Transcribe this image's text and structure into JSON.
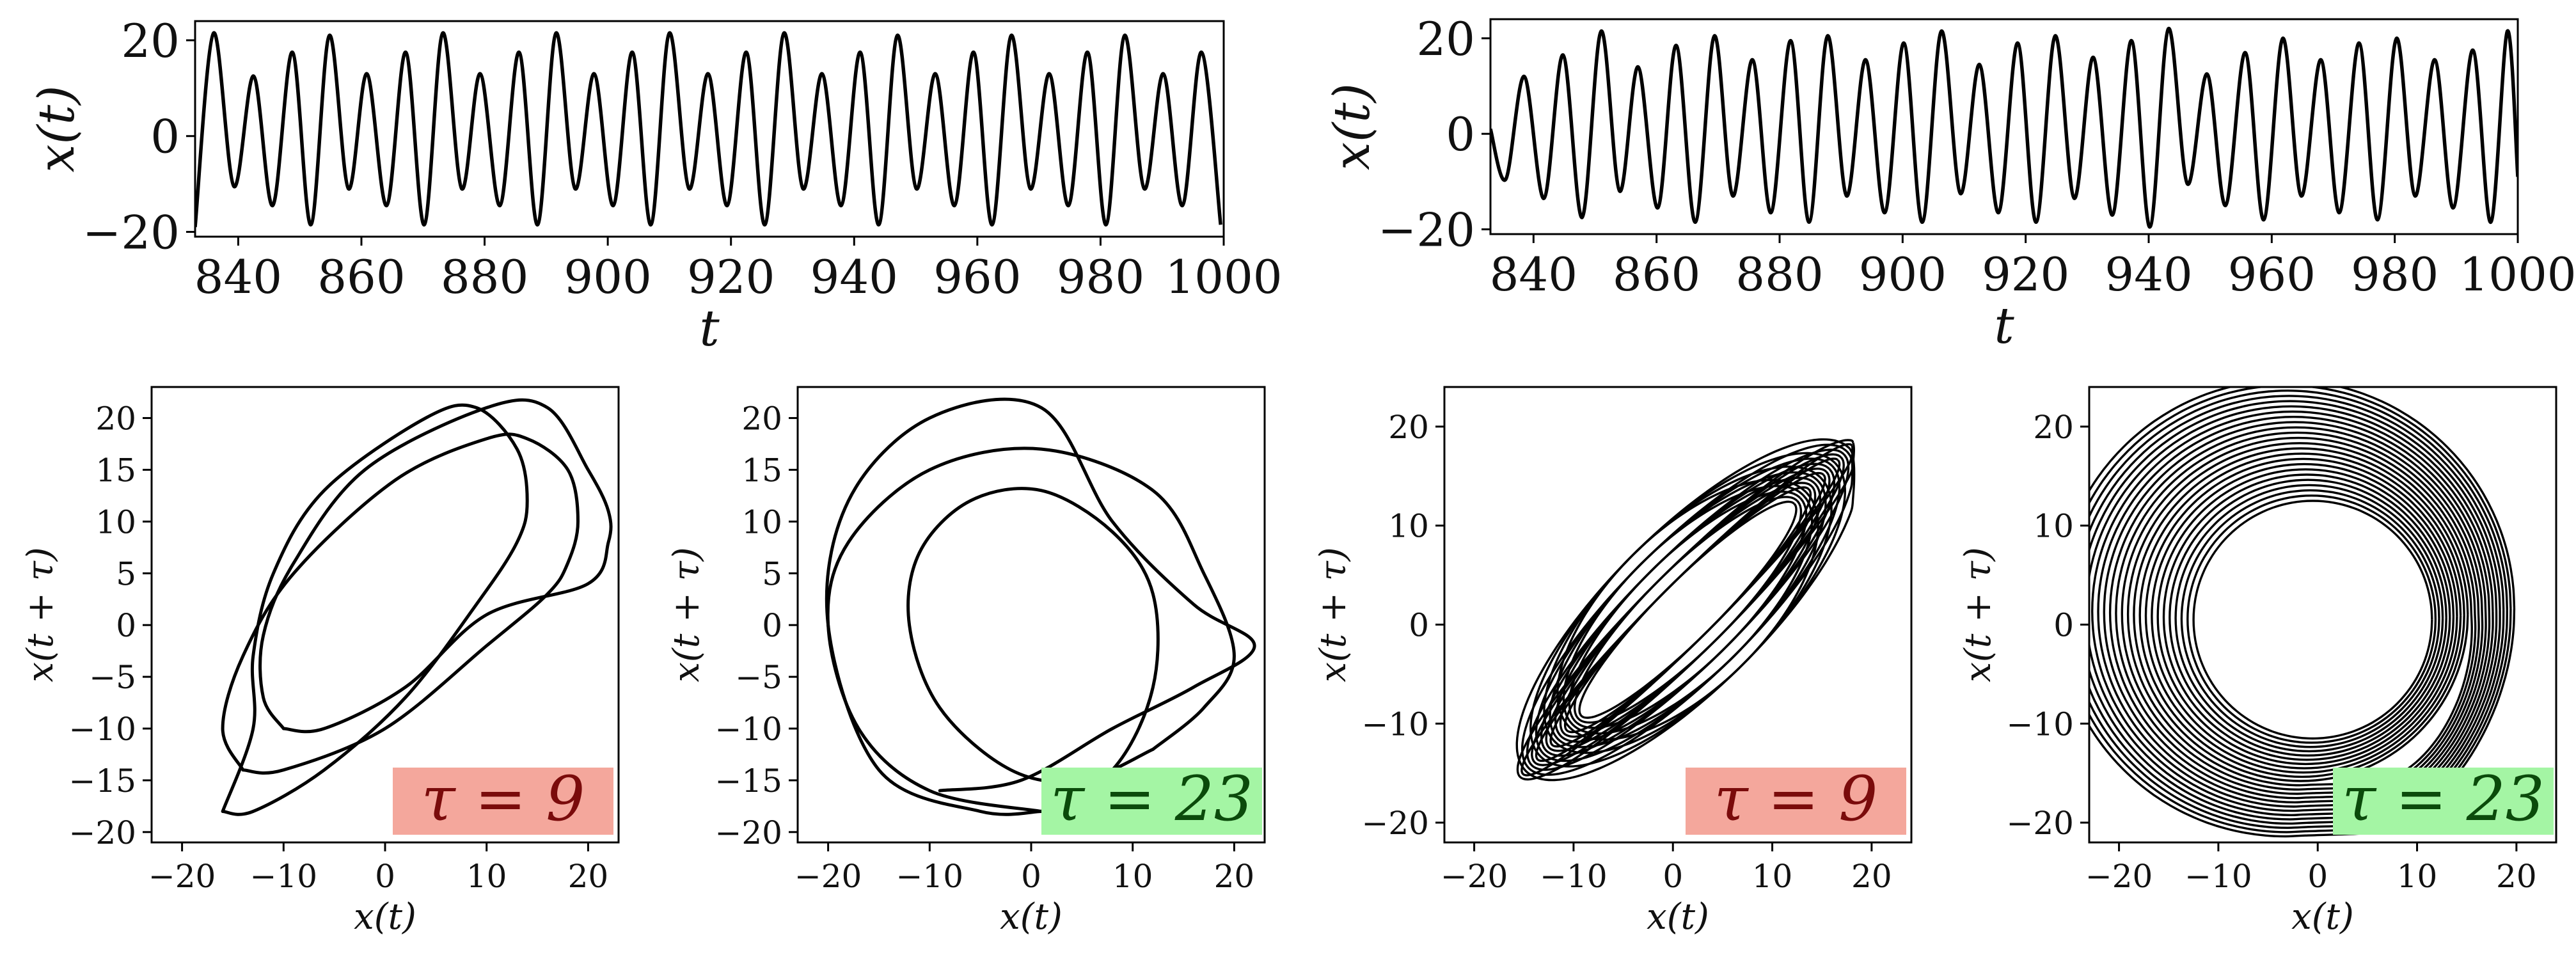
{
  "colors": {
    "trace": "#000000",
    "badge_red_bg": "#f4a79c",
    "badge_red_text": "#7a0b0b",
    "badge_green_bg": "#a4f5a4",
    "badge_green_text": "#0b4a0b"
  },
  "chart_data": [
    {
      "id": "ts-left",
      "type": "line",
      "xlabel": "t",
      "ylabel": "x(t)",
      "xlim": [
        833,
        1000
      ],
      "ylim": [
        -21,
        24
      ],
      "xticks": [
        840,
        860,
        880,
        900,
        920,
        940,
        960,
        980,
        1000
      ],
      "xtick_labels": [
        "840",
        "860",
        "880",
        "900",
        "920",
        "940",
        "960",
        "980",
        "1000"
      ],
      "yticks": [
        20,
        0,
        -20
      ],
      "ytick_labels": [
        "20",
        "0",
        "−20"
      ],
      "grid": false,
      "series": [
        {
          "color": "#000000",
          "peaks": [
            {
              "t": 836.0,
              "v": 21.5
            },
            {
              "t": 842.5,
              "v": 12.5
            },
            {
              "t": 848.8,
              "v": 17.5
            },
            {
              "t": 854.8,
              "v": 21.0
            },
            {
              "t": 860.9,
              "v": 13.0
            },
            {
              "t": 867.2,
              "v": 17.5
            },
            {
              "t": 873.2,
              "v": 21.5
            },
            {
              "t": 879.3,
              "v": 13.0
            },
            {
              "t": 885.6,
              "v": 17.5
            },
            {
              "t": 891.6,
              "v": 21.5
            },
            {
              "t": 897.8,
              "v": 13.0
            },
            {
              "t": 904.0,
              "v": 17.5
            },
            {
              "t": 910.0,
              "v": 21.5
            },
            {
              "t": 916.3,
              "v": 13.0
            },
            {
              "t": 922.5,
              "v": 17.5
            },
            {
              "t": 928.6,
              "v": 21.5
            },
            {
              "t": 934.8,
              "v": 13.0
            },
            {
              "t": 941.0,
              "v": 17.5
            },
            {
              "t": 947.0,
              "v": 21.0
            },
            {
              "t": 953.2,
              "v": 13.0
            },
            {
              "t": 959.4,
              "v": 17.5
            },
            {
              "t": 965.5,
              "v": 21.0
            },
            {
              "t": 971.7,
              "v": 13.0
            },
            {
              "t": 977.9,
              "v": 17.5
            },
            {
              "t": 983.9,
              "v": 21.0
            },
            {
              "t": 990.2,
              "v": 13.0
            },
            {
              "t": 996.4,
              "v": 17.5
            }
          ],
          "troughs": [
            {
              "t": 833.0,
              "v": -19.0
            },
            {
              "t": 839.3,
              "v": -10.5
            },
            {
              "t": 845.6,
              "v": -14.5
            },
            {
              "t": 851.8,
              "v": -18.5
            },
            {
              "t": 857.9,
              "v": -11.0
            },
            {
              "t": 864.1,
              "v": -14.5
            },
            {
              "t": 870.2,
              "v": -18.5
            },
            {
              "t": 876.3,
              "v": -11.0
            },
            {
              "t": 882.5,
              "v": -14.5
            },
            {
              "t": 888.6,
              "v": -18.5
            },
            {
              "t": 894.7,
              "v": -11.0
            },
            {
              "t": 900.9,
              "v": -14.5
            },
            {
              "t": 907.0,
              "v": -18.5
            },
            {
              "t": 913.2,
              "v": -11.0
            },
            {
              "t": 919.4,
              "v": -14.5
            },
            {
              "t": 925.5,
              "v": -18.5
            },
            {
              "t": 931.7,
              "v": -11.0
            },
            {
              "t": 937.9,
              "v": -14.5
            },
            {
              "t": 944.0,
              "v": -18.5
            },
            {
              "t": 950.1,
              "v": -11.0
            },
            {
              "t": 956.3,
              "v": -14.5
            },
            {
              "t": 962.4,
              "v": -18.5
            },
            {
              "t": 968.6,
              "v": -11.0
            },
            {
              "t": 974.8,
              "v": -14.5
            },
            {
              "t": 980.9,
              "v": -18.5
            },
            {
              "t": 987.1,
              "v": -11.0
            },
            {
              "t": 993.3,
              "v": -14.5
            },
            {
              "t": 999.5,
              "v": -18.5
            }
          ]
        }
      ]
    },
    {
      "id": "ts-right",
      "type": "line",
      "xlabel": "t",
      "ylabel": "x(t)",
      "xlim": [
        833,
        1000
      ],
      "ylim": [
        -21,
        24
      ],
      "xticks": [
        840,
        860,
        880,
        900,
        920,
        940,
        960,
        980,
        1000
      ],
      "xtick_labels": [
        "840",
        "860",
        "880",
        "900",
        "920",
        "940",
        "960",
        "980",
        "1000"
      ],
      "yticks": [
        20,
        0,
        -20
      ],
      "ytick_labels": [
        "20",
        "0",
        "−20"
      ],
      "grid": false,
      "series": [
        {
          "color": "#000000",
          "peaks": [
            {
              "t": 838.5,
              "v": 12.0
            },
            {
              "t": 844.8,
              "v": 16.5
            },
            {
              "t": 851.0,
              "v": 21.5
            },
            {
              "t": 857.0,
              "v": 14.0
            },
            {
              "t": 863.2,
              "v": 18.5
            },
            {
              "t": 869.4,
              "v": 20.5
            },
            {
              "t": 875.6,
              "v": 15.5
            },
            {
              "t": 881.8,
              "v": 19.5
            },
            {
              "t": 887.8,
              "v": 20.5
            },
            {
              "t": 894.0,
              "v": 15.5
            },
            {
              "t": 900.2,
              "v": 19.0
            },
            {
              "t": 906.3,
              "v": 21.5
            },
            {
              "t": 912.5,
              "v": 14.5
            },
            {
              "t": 918.7,
              "v": 19.0
            },
            {
              "t": 924.8,
              "v": 20.5
            },
            {
              "t": 931.0,
              "v": 16.0
            },
            {
              "t": 937.2,
              "v": 19.5
            },
            {
              "t": 943.2,
              "v": 22.0
            },
            {
              "t": 949.5,
              "v": 12.5
            },
            {
              "t": 955.7,
              "v": 17.0
            },
            {
              "t": 961.8,
              "v": 20.0
            },
            {
              "t": 968.0,
              "v": 15.5
            },
            {
              "t": 974.2,
              "v": 19.0
            },
            {
              "t": 980.3,
              "v": 20.0
            },
            {
              "t": 986.5,
              "v": 15.5
            },
            {
              "t": 992.7,
              "v": 17.5
            },
            {
              "t": 998.3,
              "v": 21.5
            }
          ],
          "troughs": [
            {
              "t": 833.0,
              "v": 1.0
            },
            {
              "t": 835.5,
              "v": -9.5
            },
            {
              "t": 841.7,
              "v": -13.5
            },
            {
              "t": 847.9,
              "v": -17.5
            },
            {
              "t": 854.0,
              "v": -12.0
            },
            {
              "t": 860.2,
              "v": -15.5
            },
            {
              "t": 866.3,
              "v": -18.5
            },
            {
              "t": 872.4,
              "v": -13.0
            },
            {
              "t": 878.6,
              "v": -16.5
            },
            {
              "t": 884.8,
              "v": -18.5
            },
            {
              "t": 890.9,
              "v": -13.0
            },
            {
              "t": 897.1,
              "v": -16.5
            },
            {
              "t": 903.2,
              "v": -18.5
            },
            {
              "t": 909.4,
              "v": -12.5
            },
            {
              "t": 915.6,
              "v": -16.5
            },
            {
              "t": 921.7,
              "v": -18.5
            },
            {
              "t": 927.9,
              "v": -13.5
            },
            {
              "t": 934.1,
              "v": -17.0
            },
            {
              "t": 940.2,
              "v": -19.5
            },
            {
              "t": 946.3,
              "v": -10.5
            },
            {
              "t": 952.5,
              "v": -15.0
            },
            {
              "t": 958.7,
              "v": -18.0
            },
            {
              "t": 964.8,
              "v": -13.0
            },
            {
              "t": 971.0,
              "v": -16.5
            },
            {
              "t": 977.2,
              "v": -18.0
            },
            {
              "t": 983.3,
              "v": -13.0
            },
            {
              "t": 989.5,
              "v": -15.5
            },
            {
              "t": 995.6,
              "v": -18.5
            },
            {
              "t": 1000.0,
              "v": -9.0
            }
          ]
        }
      ]
    },
    {
      "id": "phase-1",
      "type": "line",
      "xlabel": "x(t)",
      "ylabel": "x(t + τ)",
      "xlim": [
        -23,
        23
      ],
      "ylim": [
        -21,
        23
      ],
      "xticks": [
        -20,
        -10,
        0,
        10,
        20
      ],
      "xtick_labels": [
        "−20",
        "−10",
        "0",
        "10",
        "20"
      ],
      "yticks": [
        20,
        15,
        10,
        5,
        0,
        -5,
        -10,
        -15,
        -20
      ],
      "ytick_labels": [
        "20",
        "15",
        "10",
        "5",
        "0",
        "−5",
        "−10",
        "−15",
        "−20"
      ],
      "grid": false,
      "annotation": {
        "text": "τ = 9",
        "style": "red"
      },
      "series": [
        {
          "name": "",
          "color": "#000000",
          "x": [
            -16,
            -13,
            -6,
            2,
            9,
            13,
            14,
            13,
            9,
            4,
            -6,
            -11,
            -13,
            -13,
            -16
          ],
          "y": [
            -18,
            -18,
            -14,
            -7,
            2,
            8,
            12,
            17,
            21,
            20,
            13,
            5,
            -3,
            -10,
            -18
          ]
        },
        {
          "name": "",
          "color": "#000000",
          "x": [
            -14,
            -10,
            0,
            10,
            16,
            18,
            19,
            18,
            14,
            10,
            1,
            -9,
            -14,
            -16,
            -14
          ],
          "y": [
            -14,
            -14,
            -10,
            -2,
            3,
            6,
            10,
            15,
            18,
            18,
            14,
            5,
            -3,
            -10,
            -14
          ]
        },
        {
          "name": "",
          "color": "#000000",
          "x": [
            -10,
            -6,
            2,
            10,
            20,
            22,
            22,
            20,
            16,
            10,
            -2,
            -9,
            -12,
            -12,
            -10
          ],
          "y": [
            -10,
            -10,
            -6,
            1,
            4,
            8,
            11,
            15,
            21,
            21,
            15,
            6,
            -1,
            -7,
            -10
          ]
        }
      ]
    },
    {
      "id": "phase-2",
      "type": "line",
      "xlabel": "x(t)",
      "ylabel": "x(t + τ)",
      "xlim": [
        -23,
        23
      ],
      "ylim": [
        -21,
        23
      ],
      "xticks": [
        -20,
        -10,
        0,
        10,
        20
      ],
      "xtick_labels": [
        "−20",
        "−10",
        "0",
        "10",
        "20"
      ],
      "yticks": [
        20,
        15,
        10,
        5,
        0,
        -5,
        -10,
        -15,
        -20
      ],
      "ytick_labels": [
        "20",
        "15",
        "10",
        "5",
        "0",
        "−5",
        "−10",
        "−15",
        "−20"
      ],
      "grid": false,
      "annotation": {
        "text": "τ = 23",
        "style": "green"
      },
      "series": [
        {
          "name": "",
          "color": "#000000",
          "x": [
            1,
            8,
            12,
            12,
            8,
            1,
            -6,
            -11,
            -12,
            -9,
            -2,
            5,
            12
          ],
          "y": [
            -18,
            -14,
            -6,
            3,
            9,
            13,
            12,
            7,
            0,
            -8,
            -14,
            -15,
            -12
          ]
        },
        {
          "name": "",
          "color": "#000000",
          "x": [
            12,
            17,
            20,
            17,
            12,
            1,
            -10,
            -18,
            -20,
            -17,
            -10,
            1
          ],
          "y": [
            -12,
            -8,
            -3,
            5,
            13,
            17,
            15,
            8,
            0,
            -10,
            -16,
            -18
          ]
        },
        {
          "name": "",
          "color": "#000000",
          "x": [
            -9,
            -1,
            8,
            16,
            22,
            16,
            8,
            1,
            -10,
            -18,
            -20,
            -15,
            -5,
            1
          ],
          "y": [
            -16,
            -15,
            -10,
            -6,
            -2,
            2,
            10,
            21,
            20,
            12,
            0,
            -14,
            -18,
            -18
          ]
        }
      ]
    },
    {
      "id": "phase-3",
      "type": "line",
      "xlabel": "x(t)",
      "ylabel": "x(t + τ)",
      "xlim": [
        -23,
        24
      ],
      "ylim": [
        -22,
        24
      ],
      "xticks": [
        -20,
        -10,
        0,
        10,
        20
      ],
      "xtick_labels": [
        "−20",
        "−10",
        "0",
        "10",
        "20"
      ],
      "yticks": [
        20,
        10,
        0,
        -10,
        -20
      ],
      "ytick_labels": [
        "20",
        "10",
        "0",
        "−10",
        "−20"
      ],
      "grid": false,
      "annotation": {
        "text": "τ = 9",
        "style": "red"
      }
    },
    {
      "id": "phase-4",
      "type": "line",
      "xlabel": "x(t)",
      "ylabel": "x(t + τ)",
      "xlim": [
        -23,
        24
      ],
      "ylim": [
        -22,
        24
      ],
      "xticks": [
        -20,
        -10,
        0,
        10,
        20
      ],
      "xtick_labels": [
        "−20",
        "−10",
        "0",
        "10",
        "20"
      ],
      "yticks": [
        20,
        10,
        0,
        -10,
        -20
      ],
      "ytick_labels": [
        "20",
        "10",
        "0",
        "−10",
        "−20"
      ],
      "grid": false,
      "annotation": {
        "text": "τ = 23",
        "style": "green"
      }
    }
  ]
}
